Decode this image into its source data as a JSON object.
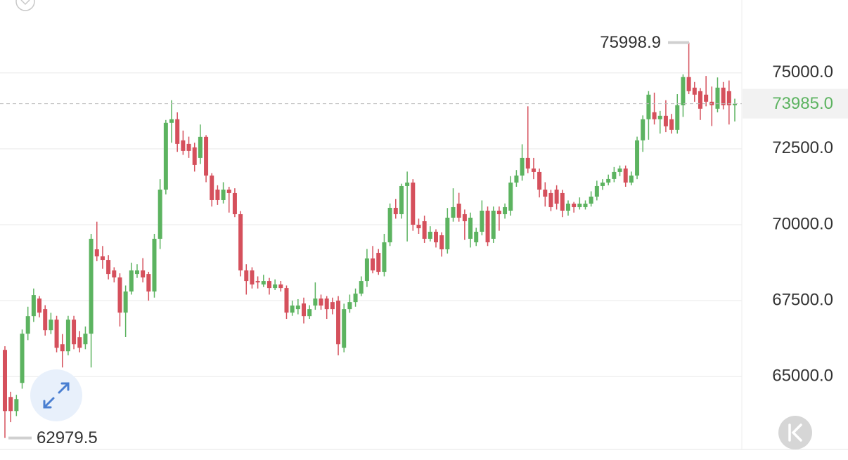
{
  "chart_data": {
    "type": "candlestick",
    "open": [
      65879,
      64328,
      63865,
      64791,
      66412,
      66990,
      67569,
      67222,
      66527,
      66875,
      66064,
      65833,
      66875,
      66296,
      66064,
      66412,
      69190,
      68958,
      68842,
      68495,
      68264,
      67106,
      67801,
      68379,
      68495,
      68379,
      67801,
      69537,
      71157,
      73357,
      73473,
      72778,
      72662,
      72547,
      72199,
      72894,
      71620,
      71157,
      70810,
      71157,
      71042,
      70347,
      68495,
      68495,
      68148,
      68032,
      68148,
      67916,
      68032,
      67916,
      67106,
      67222,
      67407,
      66990,
      67338,
      67569,
      67569,
      67453,
      67500,
      65949,
      67222,
      67453,
      67731,
      68148,
      68889,
      69074,
      68449,
      69421,
      70556,
      70347,
      71273,
      71389,
      70000,
      70116,
      69537,
      69769,
      69653,
      69190,
      70232,
      70695,
      70347,
      69537,
      69421,
      69769,
      70463,
      69537,
      70463,
      70347,
      70463,
      71389,
      71620,
      72199,
      71852,
      71736,
      71157,
      71042,
      71157,
      71042,
      70463,
      70695,
      70579,
      70579,
      70695,
      70926,
      71273,
      71389,
      71505,
      71736,
      71852,
      71389,
      71620,
      72778,
      73473,
      73704,
      73473,
      73588,
      73473,
      73125,
      73935,
      74862,
      74514,
      74398,
      74283,
      74051,
      73820,
      74514,
      74398,
      73935
    ],
    "high": [
      66000,
      64500,
      64400,
      66550,
      67300,
      67900,
      67650,
      67350,
      67100,
      67000,
      66400,
      67000,
      67000,
      66500,
      66650,
      69700,
      70100,
      69300,
      69000,
      68600,
      68400,
      68000,
      68750,
      68700,
      68900,
      68450,
      69700,
      71500,
      73450,
      74100,
      73700,
      73100,
      72900,
      72700,
      73300,
      72950,
      71700,
      71300,
      71400,
      71250,
      71200,
      70450,
      68700,
      68600,
      68300,
      68350,
      68250,
      68200,
      68150,
      68000,
      67500,
      67550,
      67600,
      67350,
      68100,
      67700,
      67650,
      67600,
      67650,
      67400,
      67700,
      67900,
      68300,
      69200,
      69300,
      69200,
      69700,
      70700,
      70850,
      71350,
      71750,
      71500,
      70200,
      70300,
      69950,
      69850,
      69750,
      70550,
      71200,
      71050,
      70500,
      70400,
      69900,
      70800,
      70600,
      70600,
      70600,
      70700,
      71600,
      71800,
      72650,
      73900,
      72199,
      71850,
      71400,
      71150,
      71300,
      71150,
      70800,
      70750,
      70900,
      70800,
      71100,
      71450,
      71500,
      71650,
      71900,
      71950,
      71950,
      71750,
      72900,
      73600,
      74400,
      74350,
      73750,
      74100,
      73650,
      74300,
      74950,
      75998.9,
      74700,
      74500,
      74900,
      74550,
      74850,
      74700,
      74750,
      74150
    ],
    "low": [
      62979.5,
      63500,
      63700,
      64600,
      66200,
      66800,
      66950,
      66350,
      66400,
      65800,
      65300,
      65700,
      65900,
      65800,
      65900,
      65300,
      68800,
      68550,
      68200,
      68100,
      66650,
      66300,
      67700,
      68250,
      68100,
      67500,
      67600,
      69200,
      71000,
      72700,
      72400,
      72300,
      72200,
      71750,
      72000,
      71400,
      70600,
      70650,
      70700,
      70400,
      70250,
      68300,
      67700,
      67900,
      67900,
      67950,
      67700,
      67850,
      67800,
      66900,
      67000,
      67050,
      66750,
      66900,
      67200,
      67200,
      66900,
      67050,
      65700,
      65800,
      67100,
      67300,
      67650,
      67950,
      68400,
      68350,
      68300,
      69300,
      70200,
      70200,
      69450,
      69800,
      69700,
      69400,
      69450,
      69250,
      68950,
      69050,
      70100,
      70100,
      69500,
      69250,
      69300,
      69650,
      69300,
      69400,
      69800,
      70200,
      70300,
      71250,
      71450,
      71700,
      71500,
      70900,
      70600,
      70450,
      70500,
      70250,
      70300,
      70400,
      70500,
      70500,
      70600,
      70800,
      71150,
      71300,
      71400,
      71600,
      71250,
      71300,
      71500,
      72400,
      72800,
      73300,
      73000,
      73050,
      73000,
      73000,
      73550,
      74300,
      74050,
      73450,
      73900,
      73250,
      73700,
      73800,
      73300,
      73400
    ],
    "close": [
      63865,
      63865,
      64259,
      66412,
      66990,
      67685,
      67106,
      66527,
      66875,
      65949,
      65833,
      66875,
      66064,
      65949,
      66412,
      69537,
      68958,
      68842,
      68379,
      68264,
      67106,
      67801,
      68495,
      68495,
      68264,
      67801,
      69537,
      71157,
      73357,
      73473,
      72662,
      72431,
      72431,
      71968,
      72894,
      71620,
      70810,
      70810,
      71157,
      71042,
      70347,
      68495,
      68148,
      68032,
      68100,
      68148,
      67916,
      68032,
      67916,
      67106,
      67338,
      67338,
      66990,
      67222,
      67569,
      67338,
      67222,
      67222,
      66064,
      67222,
      67453,
      67731,
      68148,
      68889,
      68495,
      68449,
      69421,
      70556,
      70347,
      71273,
      71389,
      70000,
      69884,
      69537,
      69769,
      69421,
      69190,
      70232,
      70579,
      70232,
      70116,
      70232,
      69769,
      70463,
      69421,
      70463,
      70347,
      70579,
      71389,
      71620,
      72199,
      71852,
      71736,
      71157,
      70926,
      70579,
      70695,
      70463,
      70695,
      70579,
      70695,
      70695,
      70926,
      71273,
      71389,
      71505,
      71736,
      71852,
      71389,
      71620,
      72778,
      73473,
      74283,
      73473,
      73588,
      73241,
      73125,
      73935,
      74862,
      74398,
      74283,
      73820,
      74051,
      73935,
      74514,
      73935,
      73935,
      73985
    ],
    "up_color": "#5cb360",
    "down_color": "#d5505c",
    "ylim": [
      62600,
      77400
    ],
    "yticks": [
      {
        "value": 65000,
        "label": "65000.0"
      },
      {
        "value": 67500,
        "label": "67500.0"
      },
      {
        "value": 70000,
        "label": "70000.0"
      },
      {
        "value": 72500,
        "label": "72500.0"
      },
      {
        "value": 75000,
        "label": "75000.0"
      }
    ],
    "grid": true,
    "last_price": {
      "value": 73985,
      "label": "73985.0"
    },
    "annotations": {
      "high": 75998.9,
      "low": 62979.5
    }
  }
}
